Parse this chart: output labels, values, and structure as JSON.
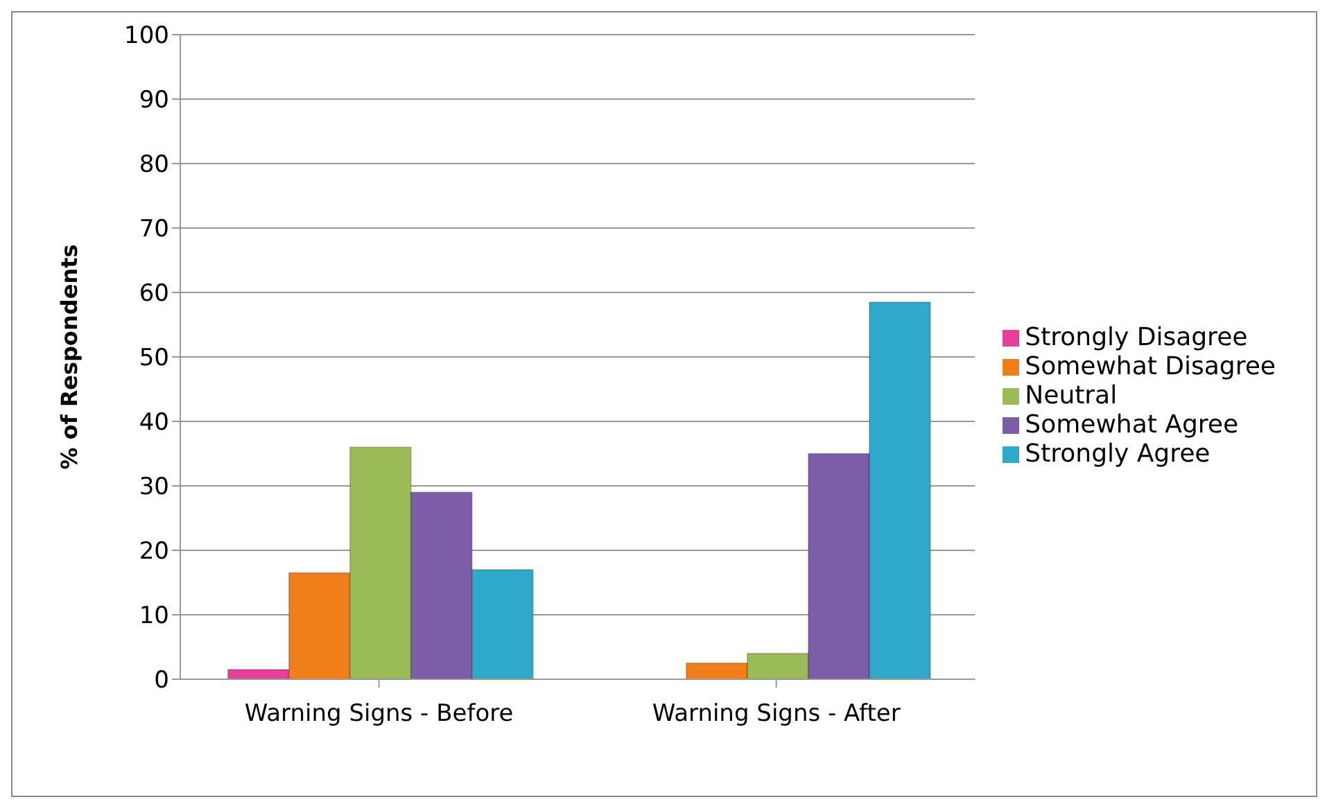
{
  "chart_data": {
    "type": "bar",
    "ylabel": "% of Respondents",
    "categories": [
      "Warning Signs - Before",
      "Warning Signs - After"
    ],
    "series": [
      {
        "name": "Strongly Disagree",
        "color": "#e83e9c",
        "values": [
          1.5,
          0
        ]
      },
      {
        "name": "Somewhat Disagree",
        "color": "#f07f1b",
        "values": [
          16.5,
          2.5
        ]
      },
      {
        "name": "Neutral",
        "color": "#9bbb59",
        "values": [
          36,
          4
        ]
      },
      {
        "name": "Somewhat Agree",
        "color": "#7b5ea7",
        "values": [
          29,
          35
        ]
      },
      {
        "name": "Strongly Agree",
        "color": "#31a9cb",
        "values": [
          17,
          58.5
        ]
      }
    ],
    "ylim": [
      0,
      100
    ],
    "yticks": [
      0,
      10,
      20,
      30,
      40,
      50,
      60,
      70,
      80,
      90,
      100
    ],
    "grid": "y",
    "legend": "right"
  }
}
